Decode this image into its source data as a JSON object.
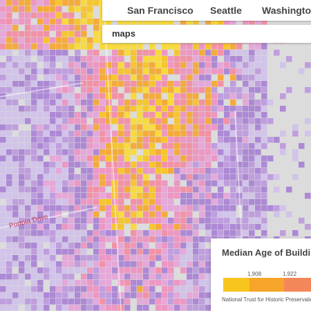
{
  "nav": {
    "links": [
      "San Francisco",
      "Seattle",
      "Washington"
    ]
  },
  "search": {
    "query": "maps"
  },
  "map": {
    "street_labels": [
      "Portola Drive"
    ]
  },
  "legend": {
    "title": "Median Age of Buildings",
    "ticks": [
      "1,908",
      "1,922"
    ],
    "source": "National Trust for Historic Preservation"
  }
}
